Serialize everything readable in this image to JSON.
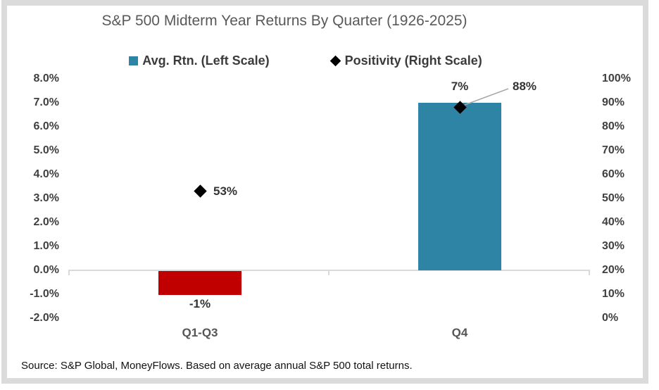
{
  "title": "S&P 500 Midterm Year Returns By Quarter (1926-2025)",
  "legend": {
    "avg_rtn": "Avg. Rtn. (Left Scale)",
    "positivity": "Positivity (Right Scale)"
  },
  "left_axis": {
    "labels": [
      "8.0%",
      "7.0%",
      "6.0%",
      "5.0%",
      "4.0%",
      "3.0%",
      "2.0%",
      "1.0%",
      "0.0%",
      "-1.0%",
      "-2.0%"
    ]
  },
  "right_axis": {
    "labels": [
      "100%",
      "90%",
      "80%",
      "70%",
      "60%",
      "50%",
      "40%",
      "30%",
      "20%",
      "10%",
      "0%"
    ]
  },
  "categories": [
    "Q1-Q3",
    "Q4"
  ],
  "data_labels": {
    "q1q3_return": "-1%",
    "q1q3_positivity": "53%",
    "q4_return": "7%",
    "q4_positivity": "88%"
  },
  "source": "Source: S&P Global, MoneyFlows. Based on average annual S&P 500 total returns.",
  "colors": {
    "bar_positive": "#2E84A5",
    "bar_negative": "#C00000",
    "marker": "#000000",
    "axis_line": "#D9D9D9",
    "leader_line": "#A9A9A9",
    "title_text": "#595959",
    "label_text": "#404040",
    "frame_border": "#DBDBDB"
  },
  "chart_data": {
    "type": "bar",
    "title": "S&P 500 Midterm Year Returns By Quarter (1926-2025)",
    "categories": [
      "Q1-Q3",
      "Q4"
    ],
    "series": [
      {
        "name": "Avg. Rtn. (Left Scale)",
        "type": "bar",
        "axis": "left",
        "unit": "%",
        "values": [
          -1,
          7
        ]
      },
      {
        "name": "Positivity (Right Scale)",
        "type": "scatter",
        "axis": "right",
        "unit": "%",
        "values": [
          53,
          88
        ]
      }
    ],
    "left_axis_label_ticks": [
      8,
      7,
      6,
      5,
      4,
      3,
      2,
      1,
      0,
      -1,
      -2
    ],
    "right_axis_label_ticks": [
      100,
      90,
      80,
      70,
      60,
      50,
      40,
      30,
      20,
      10,
      0
    ],
    "left_ylim": [
      -2,
      8
    ],
    "right_ylim": [
      0,
      100
    ],
    "grid": false,
    "legend_position": "top",
    "source_note": "Source: S&P Global, MoneyFlows. Based on average annual S&P 500 total returns."
  }
}
